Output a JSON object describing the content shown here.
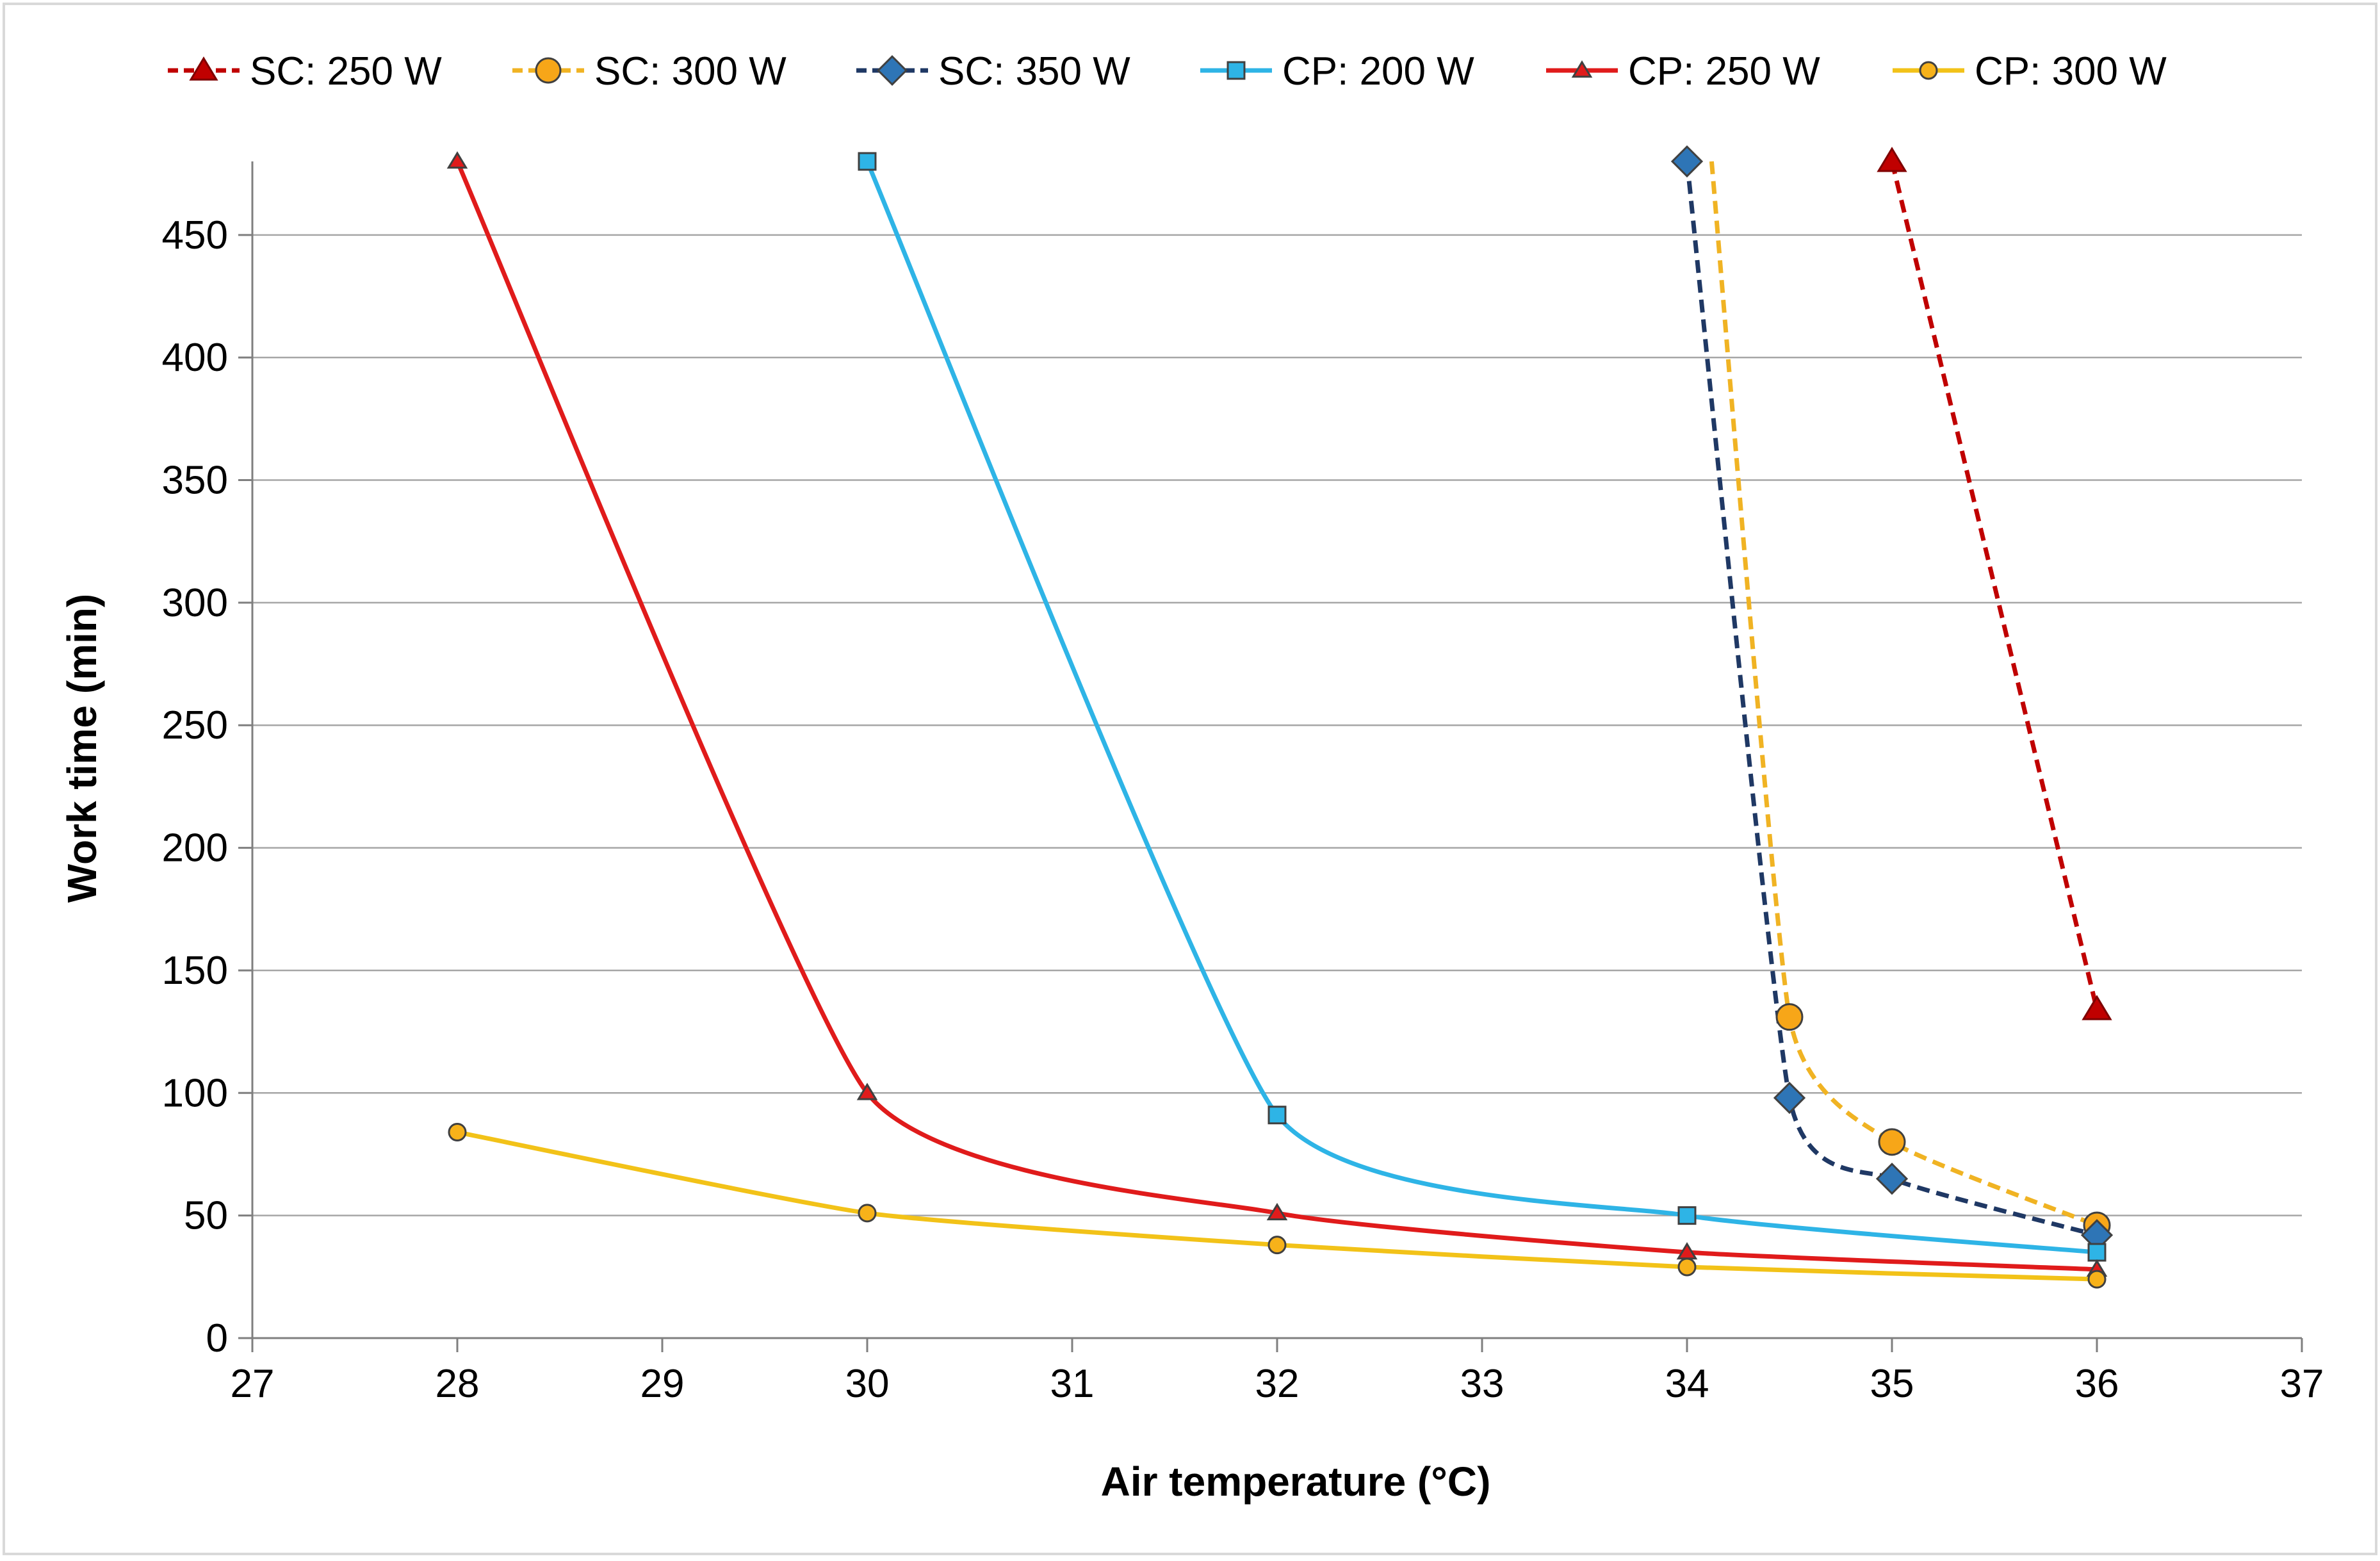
{
  "chart_data": {
    "type": "line",
    "title": "",
    "xlabel": "Air temperature (°C)",
    "ylabel": "Work time (min)",
    "xlim": [
      27,
      37
    ],
    "ylim": [
      0,
      480
    ],
    "xticks": [
      27,
      28,
      29,
      30,
      31,
      32,
      33,
      34,
      35,
      36,
      37
    ],
    "yticks": [
      0,
      50,
      100,
      150,
      200,
      250,
      300,
      350,
      400,
      450
    ],
    "grid": "horizontal",
    "legend_position": "top",
    "series": [
      {
        "name": "SC: 250 W",
        "color": "#c00000",
        "dash": "dashed",
        "marker": "triangle",
        "marker_size": "large",
        "points": [
          [
            35,
            480
          ],
          [
            36,
            134
          ]
        ]
      },
      {
        "name": "SC: 300 W",
        "color": "#f0b323",
        "dash": "dashed",
        "marker": "circle",
        "marker_size": "large",
        "marker_fill": "#f7a618",
        "points": [
          [
            34.12,
            480
          ],
          [
            34.5,
            131
          ],
          [
            35,
            80
          ],
          [
            36,
            46
          ]
        ]
      },
      {
        "name": "SC: 350 W",
        "color": "#1f3864",
        "dash": "dashed",
        "marker": "diamond",
        "marker_size": "large",
        "marker_fill": "#2e75b6",
        "points": [
          [
            34,
            480
          ],
          [
            34.5,
            98
          ],
          [
            35,
            65
          ],
          [
            36,
            42
          ]
        ]
      },
      {
        "name": "CP: 200 W",
        "color": "#2eb4e6",
        "dash": "solid",
        "marker": "square",
        "marker_size": "small",
        "marker_fill": "#2eb4e6",
        "points": [
          [
            30,
            480
          ],
          [
            32,
            91
          ],
          [
            34,
            50
          ],
          [
            36,
            35
          ]
        ]
      },
      {
        "name": "CP: 250 W",
        "color": "#e01b1b",
        "dash": "solid",
        "marker": "triangle",
        "marker_size": "small",
        "marker_fill": "#e01b1b",
        "points": [
          [
            28,
            480
          ],
          [
            30,
            100
          ],
          [
            32,
            51
          ],
          [
            34,
            35
          ],
          [
            36,
            28
          ]
        ]
      },
      {
        "name": "CP: 300 W",
        "color": "#f2c218",
        "dash": "solid",
        "marker": "circle",
        "marker_size": "small",
        "marker_fill": "#f7b21a",
        "points": [
          [
            28,
            84
          ],
          [
            30,
            51
          ],
          [
            32,
            38
          ],
          [
            34,
            29
          ],
          [
            36,
            24
          ]
        ]
      }
    ]
  }
}
